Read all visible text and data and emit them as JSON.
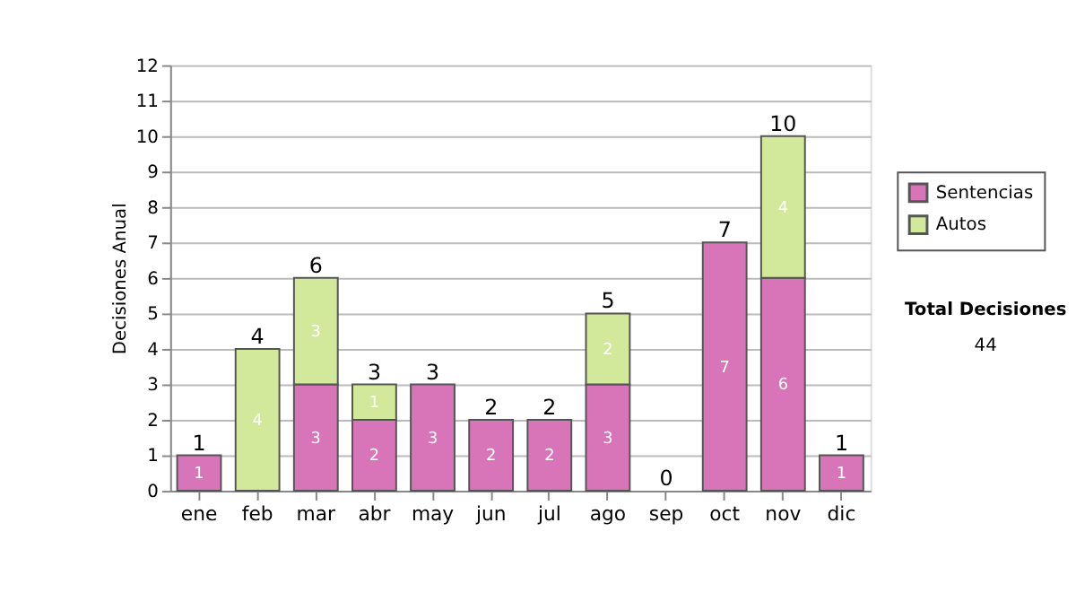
{
  "chart_data": {
    "type": "bar",
    "stacked": true,
    "ylabel": "Decisiones Anual",
    "categories": [
      "ene",
      "feb",
      "mar",
      "abr",
      "may",
      "jun",
      "jul",
      "ago",
      "sep",
      "oct",
      "nov",
      "dic"
    ],
    "series": [
      {
        "name": "Sentencias",
        "color": "#d875b8",
        "values": [
          1,
          0,
          3,
          2,
          3,
          2,
          2,
          3,
          0,
          7,
          6,
          1
        ],
        "value_labels": [
          "1",
          null,
          "3",
          "2",
          "3",
          "2",
          "2",
          "3",
          null,
          "7",
          "6",
          "1"
        ]
      },
      {
        "name": "Autos",
        "color": "#d2e89a",
        "values": [
          0,
          4,
          3,
          1,
          0,
          0,
          0,
          2,
          0,
          0,
          4,
          0
        ],
        "value_labels": [
          null,
          "4",
          "3",
          "1",
          null,
          null,
          null,
          "2",
          null,
          null,
          "4",
          null
        ]
      }
    ],
    "totals": [
      "1",
      "4",
      "6",
      "3",
      "3",
      "2",
      "2",
      "5",
      "0",
      "7",
      "10",
      "1"
    ],
    "ylim": [
      0,
      12
    ],
    "yticks": [
      0,
      1,
      2,
      3,
      4,
      5,
      6,
      7,
      8,
      9,
      10,
      11,
      12
    ],
    "grid": "y",
    "legend": "right",
    "annotations": [
      "Total Decisiones",
      "44"
    ]
  }
}
